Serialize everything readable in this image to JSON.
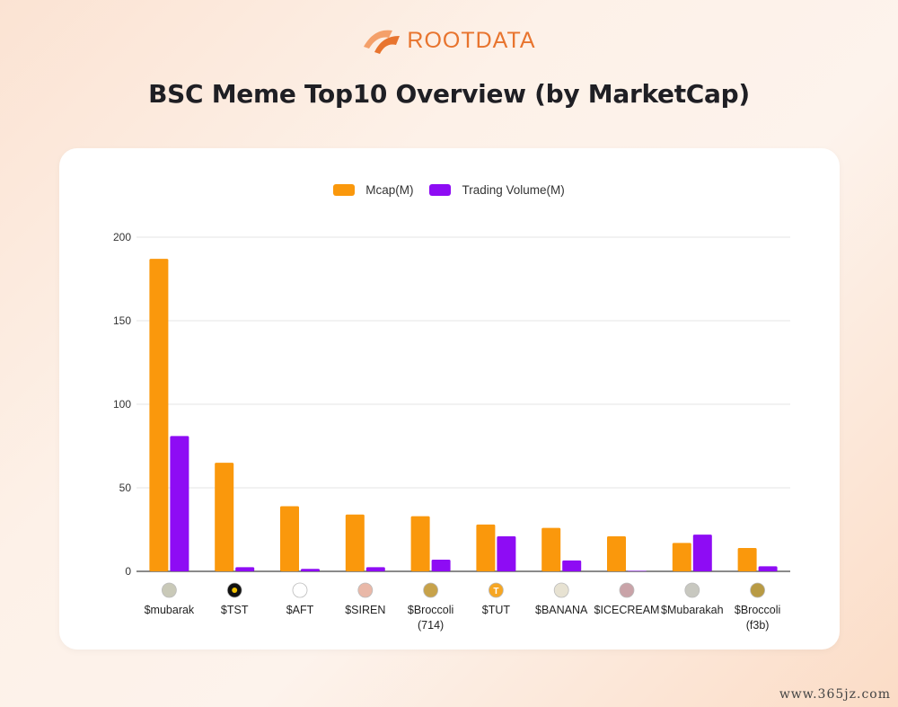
{
  "brand": {
    "name": "ROOTDATA",
    "logo_icon": "rootdata-logo-icon",
    "color": "#e8742e"
  },
  "title": "BSC Meme Top10 Overview (by MarketCap)",
  "watermark": "www.365jz.com",
  "colors": {
    "mcap": "#fa980c",
    "volume": "#8e0cf4",
    "grid": "#e6e6e6",
    "axis": "#444444",
    "label": "#222222"
  },
  "chart_data": {
    "type": "bar",
    "title": "BSC Meme Top10 Overview (by MarketCap)",
    "xlabel": "",
    "ylabel": "",
    "ylim": [
      0,
      200
    ],
    "yticks": [
      0,
      50,
      100,
      150,
      200
    ],
    "grid": true,
    "legend_position": "top-center",
    "categories": [
      {
        "label": [
          "$mubarak"
        ],
        "icon": "mubarak-avatar-icon"
      },
      {
        "label": [
          "$TST"
        ],
        "icon": "tst-token-icon"
      },
      {
        "label": [
          "$AFT"
        ],
        "icon": "aft-token-icon"
      },
      {
        "label": [
          "$SIREN"
        ],
        "icon": "siren-avatar-icon"
      },
      {
        "label": [
          "$Broccoli",
          "(714)"
        ],
        "icon": "broccoli-dog-icon"
      },
      {
        "label": [
          "$TUT"
        ],
        "icon": "tut-token-icon"
      },
      {
        "label": [
          "$BANANA"
        ],
        "icon": "banana-avatar-icon"
      },
      {
        "label": [
          "$ICECREAM"
        ],
        "icon": "icecream-avatar-icon"
      },
      {
        "label": [
          "$Mubarakah"
        ],
        "icon": "mubarakah-avatar-icon"
      },
      {
        "label": [
          "$Broccoli",
          "(f3b)"
        ],
        "icon": "broccoli-dog-icon"
      }
    ],
    "series": [
      {
        "name": "Mcap(M)",
        "color": "#fa980c",
        "values": [
          187,
          65,
          39,
          34,
          33,
          28,
          26,
          21,
          17,
          14
        ]
      },
      {
        "name": "Trading Volume(M)",
        "color": "#8e0cf4",
        "values": [
          81,
          2.5,
          1.5,
          2.5,
          7,
          21,
          6.5,
          0.3,
          22,
          3
        ]
      }
    ]
  }
}
